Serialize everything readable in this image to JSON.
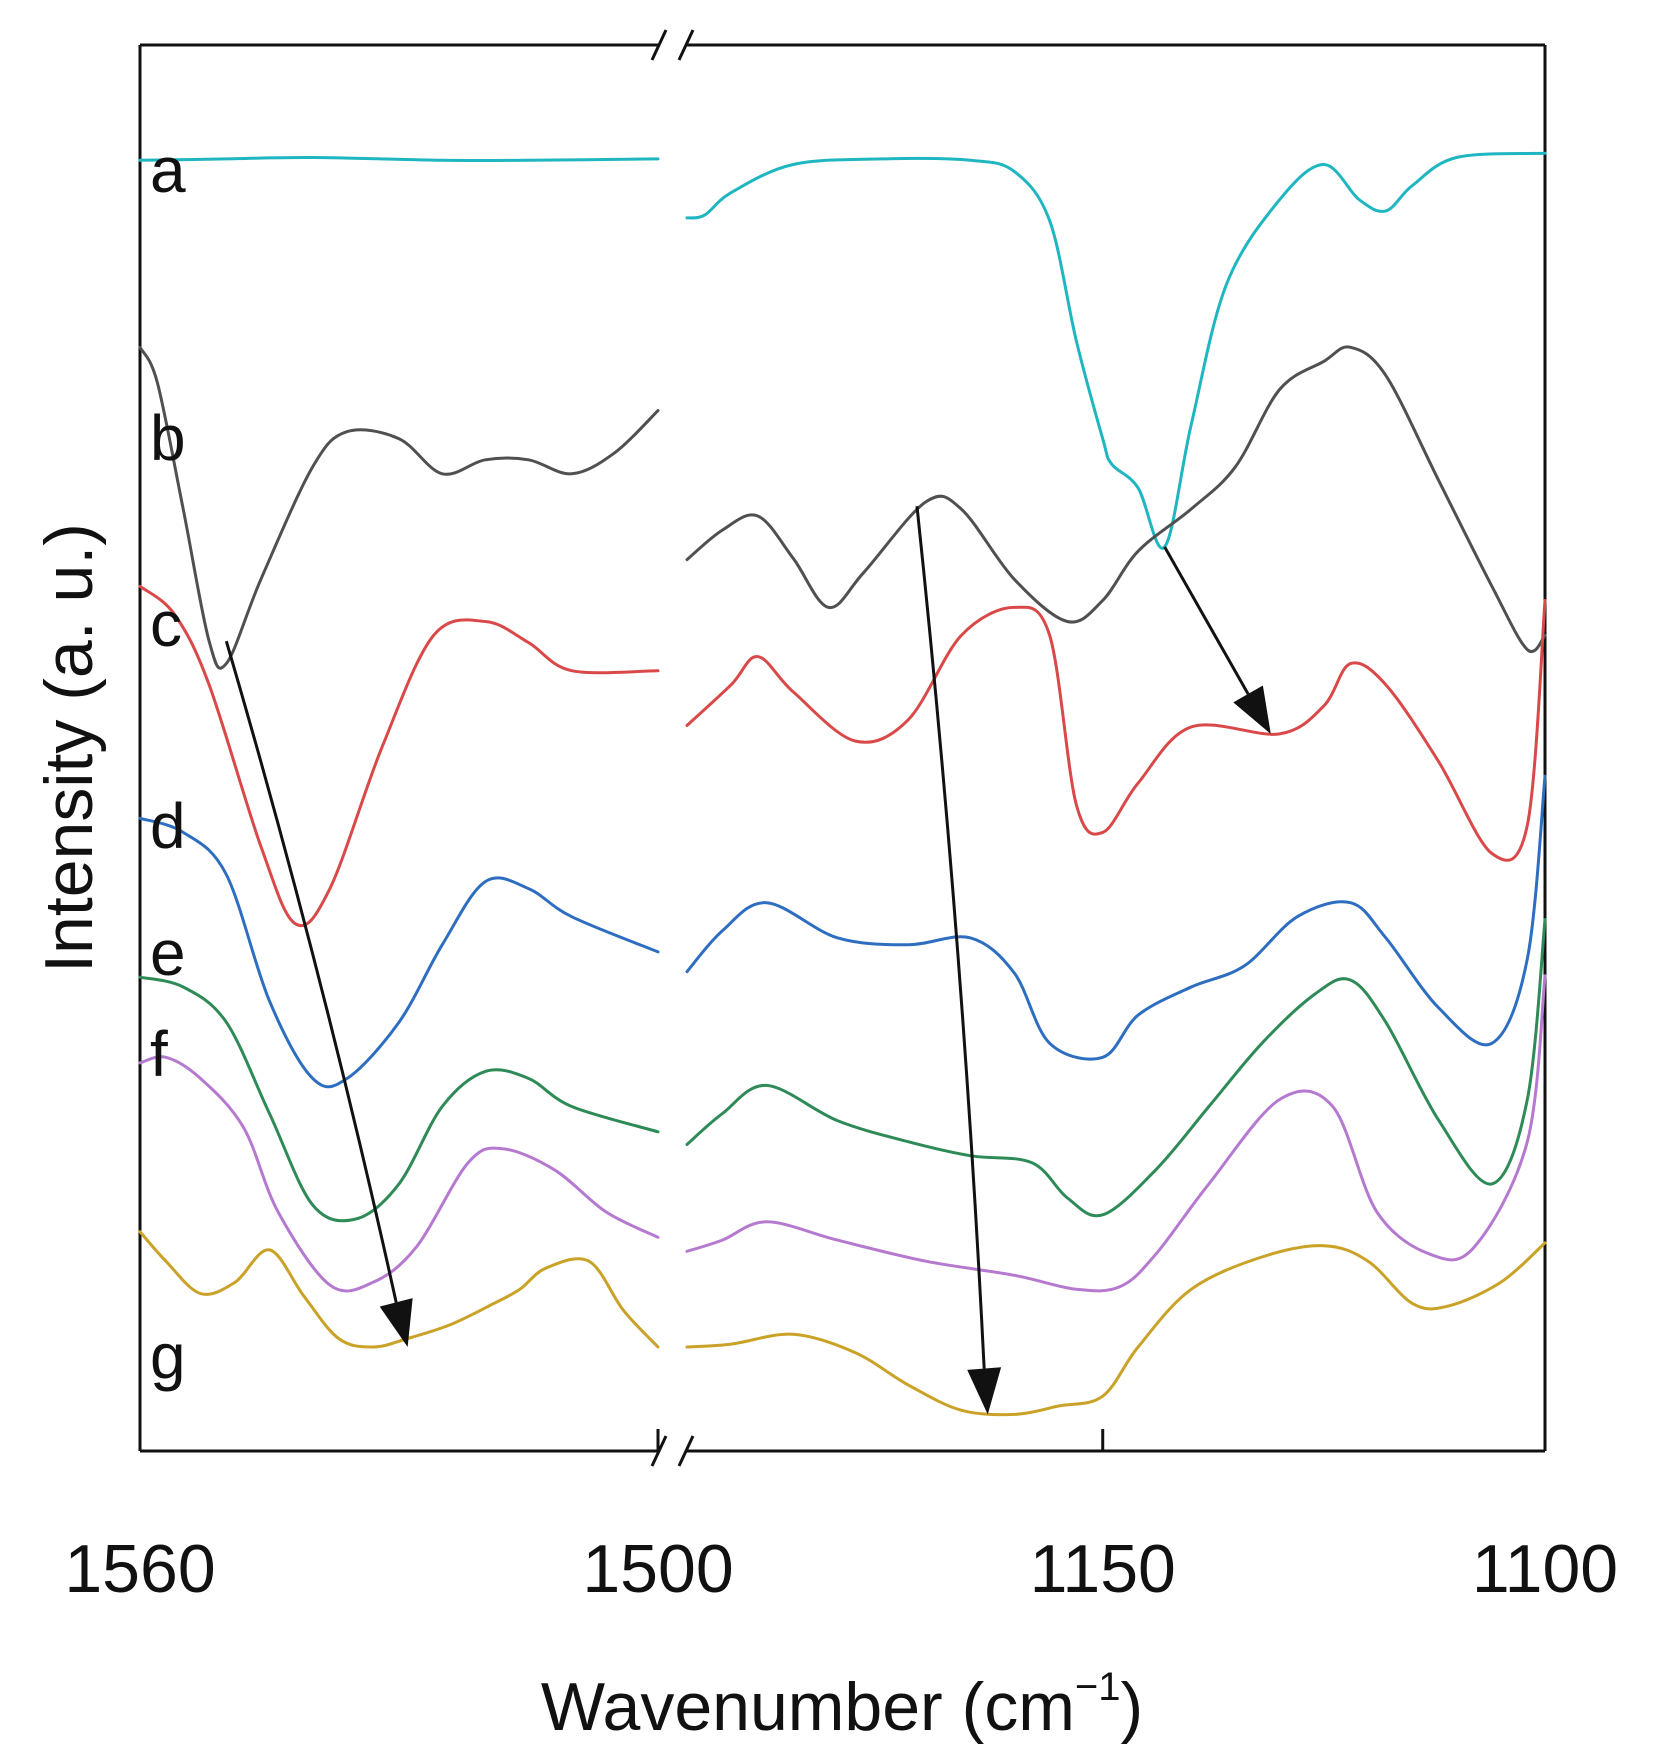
{
  "chart_data": {
    "type": "line",
    "ylabel": "Intensity (a. u.)",
    "xlabel_main": "Wavenumber (cm",
    "xlabel_sup": "−1",
    "xlabel_close": ")",
    "axis_break": true,
    "segments": [
      {
        "name": "left",
        "xlim": [
          1560,
          1500
        ],
        "ticks": [
          "1560",
          "1500"
        ]
      },
      {
        "name": "right",
        "xlim": [
          1197,
          1100
        ],
        "ticks": [
          "1150",
          "1100"
        ]
      }
    ],
    "y_range": [
      0,
      100
    ],
    "series": [
      {
        "name": "a",
        "color": "#1fb6c1",
        "left": [
          [
            1560,
            91.8
          ],
          [
            1550,
            91.9
          ],
          [
            1540,
            92.0
          ],
          [
            1525,
            91.8
          ],
          [
            1515,
            91.8
          ],
          [
            1500,
            91.9
          ]
        ],
        "right": [
          [
            1197,
            87.7
          ],
          [
            1195,
            87.9
          ],
          [
            1192,
            89.5
          ],
          [
            1185,
            91.5
          ],
          [
            1175,
            91.9
          ],
          [
            1165,
            91.8
          ],
          [
            1160,
            91.0
          ],
          [
            1156,
            87.5
          ],
          [
            1153,
            79.0
          ],
          [
            1150,
            72.0
          ],
          [
            1149,
            70.2
          ],
          [
            1146,
            68.5
          ],
          [
            1143,
            64.3
          ],
          [
            1140,
            73.0
          ],
          [
            1136,
            83.0
          ],
          [
            1130,
            89.0
          ],
          [
            1125,
            91.5
          ],
          [
            1121,
            89.0
          ],
          [
            1118,
            88.2
          ],
          [
            1115,
            90.0
          ],
          [
            1110,
            92.0
          ],
          [
            1100,
            92.3
          ]
        ]
      },
      {
        "name": "b",
        "color": "#505050",
        "left": [
          [
            1560,
            78.5
          ],
          [
            1558,
            76.0
          ],
          [
            1555,
            67.0
          ],
          [
            1552,
            57.6
          ],
          [
            1550,
            56.0
          ],
          [
            1546,
            62.0
          ],
          [
            1540,
            70.0
          ],
          [
            1536,
            72.5
          ],
          [
            1530,
            72.0
          ],
          [
            1525,
            69.5
          ],
          [
            1520,
            70.5
          ],
          [
            1515,
            70.5
          ],
          [
            1510,
            69.5
          ],
          [
            1505,
            71.0
          ],
          [
            1500,
            74.0
          ]
        ],
        "right": [
          [
            1197,
            63.4
          ],
          [
            1193,
            65.5
          ],
          [
            1189,
            66.5
          ],
          [
            1185,
            63.5
          ],
          [
            1181,
            60.0
          ],
          [
            1177,
            62.5
          ],
          [
            1170,
            67.5
          ],
          [
            1166,
            67.0
          ],
          [
            1160,
            62.0
          ],
          [
            1154,
            59.0
          ],
          [
            1150,
            60.5
          ],
          [
            1146,
            64.0
          ],
          [
            1140,
            67.0
          ],
          [
            1135,
            70.0
          ],
          [
            1130,
            75.5
          ],
          [
            1125,
            77.5
          ],
          [
            1122,
            78.5
          ],
          [
            1118,
            76.5
          ],
          [
            1112,
            69.0
          ],
          [
            1106,
            61.5
          ],
          [
            1102,
            57.0
          ],
          [
            1100,
            58.0
          ]
        ]
      },
      {
        "name": "c",
        "color": "#d94949",
        "left": [
          [
            1560,
            61.5
          ],
          [
            1556,
            59.5
          ],
          [
            1552,
            54.5
          ],
          [
            1546,
            43.0
          ],
          [
            1542,
            37.5
          ],
          [
            1538,
            40.0
          ],
          [
            1532,
            50.0
          ],
          [
            1526,
            58.0
          ],
          [
            1520,
            59.0
          ],
          [
            1515,
            57.5
          ],
          [
            1510,
            55.5
          ],
          [
            1500,
            55.5
          ]
        ],
        "right": [
          [
            1197,
            51.6
          ],
          [
            1192,
            54.5
          ],
          [
            1189,
            56.5
          ],
          [
            1185,
            54.0
          ],
          [
            1178,
            50.5
          ],
          [
            1172,
            52.0
          ],
          [
            1166,
            58.0
          ],
          [
            1160,
            60.0
          ],
          [
            1156,
            58.0
          ],
          [
            1153,
            46.0
          ],
          [
            1150,
            44.0
          ],
          [
            1146,
            47.5
          ],
          [
            1140,
            51.5
          ],
          [
            1130,
            51.0
          ],
          [
            1125,
            53.0
          ],
          [
            1122,
            56.0
          ],
          [
            1118,
            54.5
          ],
          [
            1112,
            49.0
          ],
          [
            1106,
            42.5
          ],
          [
            1102,
            44.5
          ],
          [
            1100,
            60.5
          ]
        ]
      },
      {
        "name": "d",
        "color": "#2e6ec0",
        "left": [
          [
            1560,
            45.0
          ],
          [
            1555,
            44.0
          ],
          [
            1550,
            41.0
          ],
          [
            1545,
            32.0
          ],
          [
            1540,
            26.5
          ],
          [
            1536,
            26.5
          ],
          [
            1530,
            30.5
          ],
          [
            1525,
            36.0
          ],
          [
            1520,
            40.5
          ],
          [
            1515,
            40.0
          ],
          [
            1510,
            38.0
          ],
          [
            1500,
            35.5
          ]
        ],
        "right": [
          [
            1197,
            34.1
          ],
          [
            1193,
            37.0
          ],
          [
            1188,
            39.0
          ],
          [
            1180,
            36.5
          ],
          [
            1172,
            36.0
          ],
          [
            1165,
            36.5
          ],
          [
            1160,
            34.0
          ],
          [
            1156,
            29.0
          ],
          [
            1150,
            28.0
          ],
          [
            1146,
            31.0
          ],
          [
            1140,
            33.0
          ],
          [
            1134,
            34.5
          ],
          [
            1128,
            38.0
          ],
          [
            1122,
            39.0
          ],
          [
            1118,
            36.5
          ],
          [
            1112,
            31.5
          ],
          [
            1106,
            29.0
          ],
          [
            1102,
            35.0
          ],
          [
            1100,
            48.0
          ]
        ]
      },
      {
        "name": "e",
        "color": "#2e8b57",
        "left": [
          [
            1560,
            33.7
          ],
          [
            1555,
            33.0
          ],
          [
            1550,
            30.5
          ],
          [
            1545,
            24.0
          ],
          [
            1540,
            17.5
          ],
          [
            1535,
            16.5
          ],
          [
            1530,
            19.0
          ],
          [
            1525,
            24.5
          ],
          [
            1520,
            27.0
          ],
          [
            1515,
            26.5
          ],
          [
            1510,
            24.5
          ],
          [
            1500,
            22.7
          ]
        ],
        "right": [
          [
            1197,
            21.8
          ],
          [
            1193,
            24.0
          ],
          [
            1188,
            26.0
          ],
          [
            1180,
            23.5
          ],
          [
            1172,
            22.0
          ],
          [
            1165,
            21.0
          ],
          [
            1158,
            20.5
          ],
          [
            1154,
            18.0
          ],
          [
            1150,
            16.8
          ],
          [
            1144,
            20.0
          ],
          [
            1138,
            24.5
          ],
          [
            1132,
            29.0
          ],
          [
            1126,
            32.5
          ],
          [
            1122,
            33.5
          ],
          [
            1118,
            30.5
          ],
          [
            1112,
            23.5
          ],
          [
            1106,
            19.0
          ],
          [
            1102,
            25.0
          ],
          [
            1100,
            37.8
          ]
        ]
      },
      {
        "name": "f",
        "color": "#b57ad0",
        "left": [
          [
            1560,
            27.6
          ],
          [
            1557,
            28.0
          ],
          [
            1553,
            26.5
          ],
          [
            1548,
            23.0
          ],
          [
            1544,
            17.0
          ],
          [
            1538,
            11.8
          ],
          [
            1533,
            12.0
          ],
          [
            1528,
            14.5
          ],
          [
            1522,
            20.5
          ],
          [
            1518,
            21.5
          ],
          [
            1512,
            20.0
          ],
          [
            1506,
            17.0
          ],
          [
            1500,
            15.2
          ]
        ],
        "right": [
          [
            1197,
            14.2
          ],
          [
            1193,
            15.0
          ],
          [
            1188,
            16.3
          ],
          [
            1180,
            15.0
          ],
          [
            1170,
            13.5
          ],
          [
            1160,
            12.5
          ],
          [
            1153,
            11.5
          ],
          [
            1148,
            11.7
          ],
          [
            1144,
            14.0
          ],
          [
            1138,
            19.0
          ],
          [
            1130,
            25.0
          ],
          [
            1124,
            24.5
          ],
          [
            1119,
            17.0
          ],
          [
            1113,
            14.0
          ],
          [
            1108,
            14.5
          ],
          [
            1102,
            22.0
          ],
          [
            1100,
            33.8
          ]
        ]
      },
      {
        "name": "g",
        "color": "#c9a227",
        "left": [
          [
            1560,
            15.6
          ],
          [
            1557,
            13.5
          ],
          [
            1553,
            11.2
          ],
          [
            1549,
            12.0
          ],
          [
            1545,
            14.3
          ],
          [
            1541,
            11.0
          ],
          [
            1537,
            8.0
          ],
          [
            1533,
            7.4
          ],
          [
            1529,
            8.0
          ],
          [
            1524,
            9.0
          ],
          [
            1519,
            10.5
          ],
          [
            1516,
            11.5
          ],
          [
            1513,
            13.0
          ],
          [
            1508,
            13.5
          ],
          [
            1504,
            10.0
          ],
          [
            1500,
            7.4
          ]
        ],
        "right": [
          [
            1197,
            7.4
          ],
          [
            1192,
            7.6
          ],
          [
            1185,
            8.3
          ],
          [
            1178,
            7.0
          ],
          [
            1172,
            4.7
          ],
          [
            1166,
            2.9
          ],
          [
            1160,
            2.6
          ],
          [
            1155,
            3.2
          ],
          [
            1150,
            3.9
          ],
          [
            1146,
            7.4
          ],
          [
            1140,
            11.5
          ],
          [
            1132,
            13.8
          ],
          [
            1125,
            14.6
          ],
          [
            1120,
            13.5
          ],
          [
            1115,
            10.5
          ],
          [
            1111,
            10.3
          ],
          [
            1105,
            12.0
          ],
          [
            1100,
            14.8
          ]
        ]
      }
    ],
    "arrows": [
      {
        "segment": "left",
        "from": [
          1550,
          57.6
        ],
        "to": [
          1529,
          7.4
        ]
      },
      {
        "segment": "right",
        "from": [
          1171,
          67.2
        ],
        "to": [
          1163,
          2.6
        ]
      },
      {
        "segment": "right",
        "from": [
          1143,
          64.3
        ],
        "to": [
          1131,
          51.0
        ]
      }
    ]
  }
}
